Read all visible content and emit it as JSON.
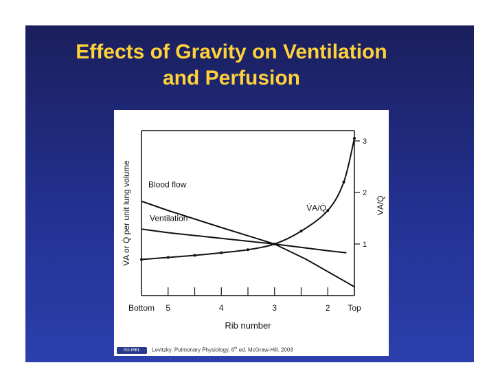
{
  "slide": {
    "title_line1": "Effects of Gravity on Ventilation",
    "title_line2": "and Perfusion",
    "colors": {
      "title": "#ffd23a",
      "background": "#233191"
    },
    "citation_before": "Levitzky. Pulmonary Physiology, 6",
    "citation_sup": "th",
    "citation_after": " ed. McGraw-Hill. 2003",
    "logo_text": "PO-IREL"
  },
  "chart_data": {
    "type": "line",
    "xlabel": "Rib number",
    "ylabel_left": "V̇A or Q̇ per unit lung volume",
    "ylabel_right": "V̇A/Q̇",
    "x_categories": [
      "Bottom",
      "5",
      "4",
      "3",
      "2",
      "Top"
    ],
    "x_positions": [
      -0.5,
      0,
      1,
      2,
      3,
      3.5
    ],
    "y_right_ticks": [
      1,
      2,
      3
    ],
    "y_right_range": [
      0,
      3.2
    ],
    "series": [
      {
        "name": "Blood flow",
        "axis": "left",
        "x": [
          -0.5,
          0,
          1,
          2,
          2.6,
          3.5
        ],
        "y": [
          1.83,
          1.65,
          1.32,
          1.0,
          0.7,
          0.17
        ]
      },
      {
        "name": "Ventilation",
        "axis": "left",
        "x": [
          -0.5,
          0,
          1,
          2,
          3,
          3.35
        ],
        "y": [
          1.29,
          1.22,
          1.11,
          1.0,
          0.87,
          0.83
        ]
      },
      {
        "name": "V̇A/Q̇",
        "axis": "right",
        "x": [
          -0.5,
          0,
          0.5,
          1,
          1.5,
          2,
          2.5,
          3,
          3.3,
          3.5
        ],
        "y": [
          0.7,
          0.74,
          0.78,
          0.83,
          0.89,
          1.0,
          1.25,
          1.65,
          2.2,
          3.05
        ]
      }
    ],
    "series_labels": {
      "blood_flow": "Blood flow",
      "ventilation": "Ventilation",
      "ratio": "V̇A/Q̇"
    },
    "grid": false
  }
}
